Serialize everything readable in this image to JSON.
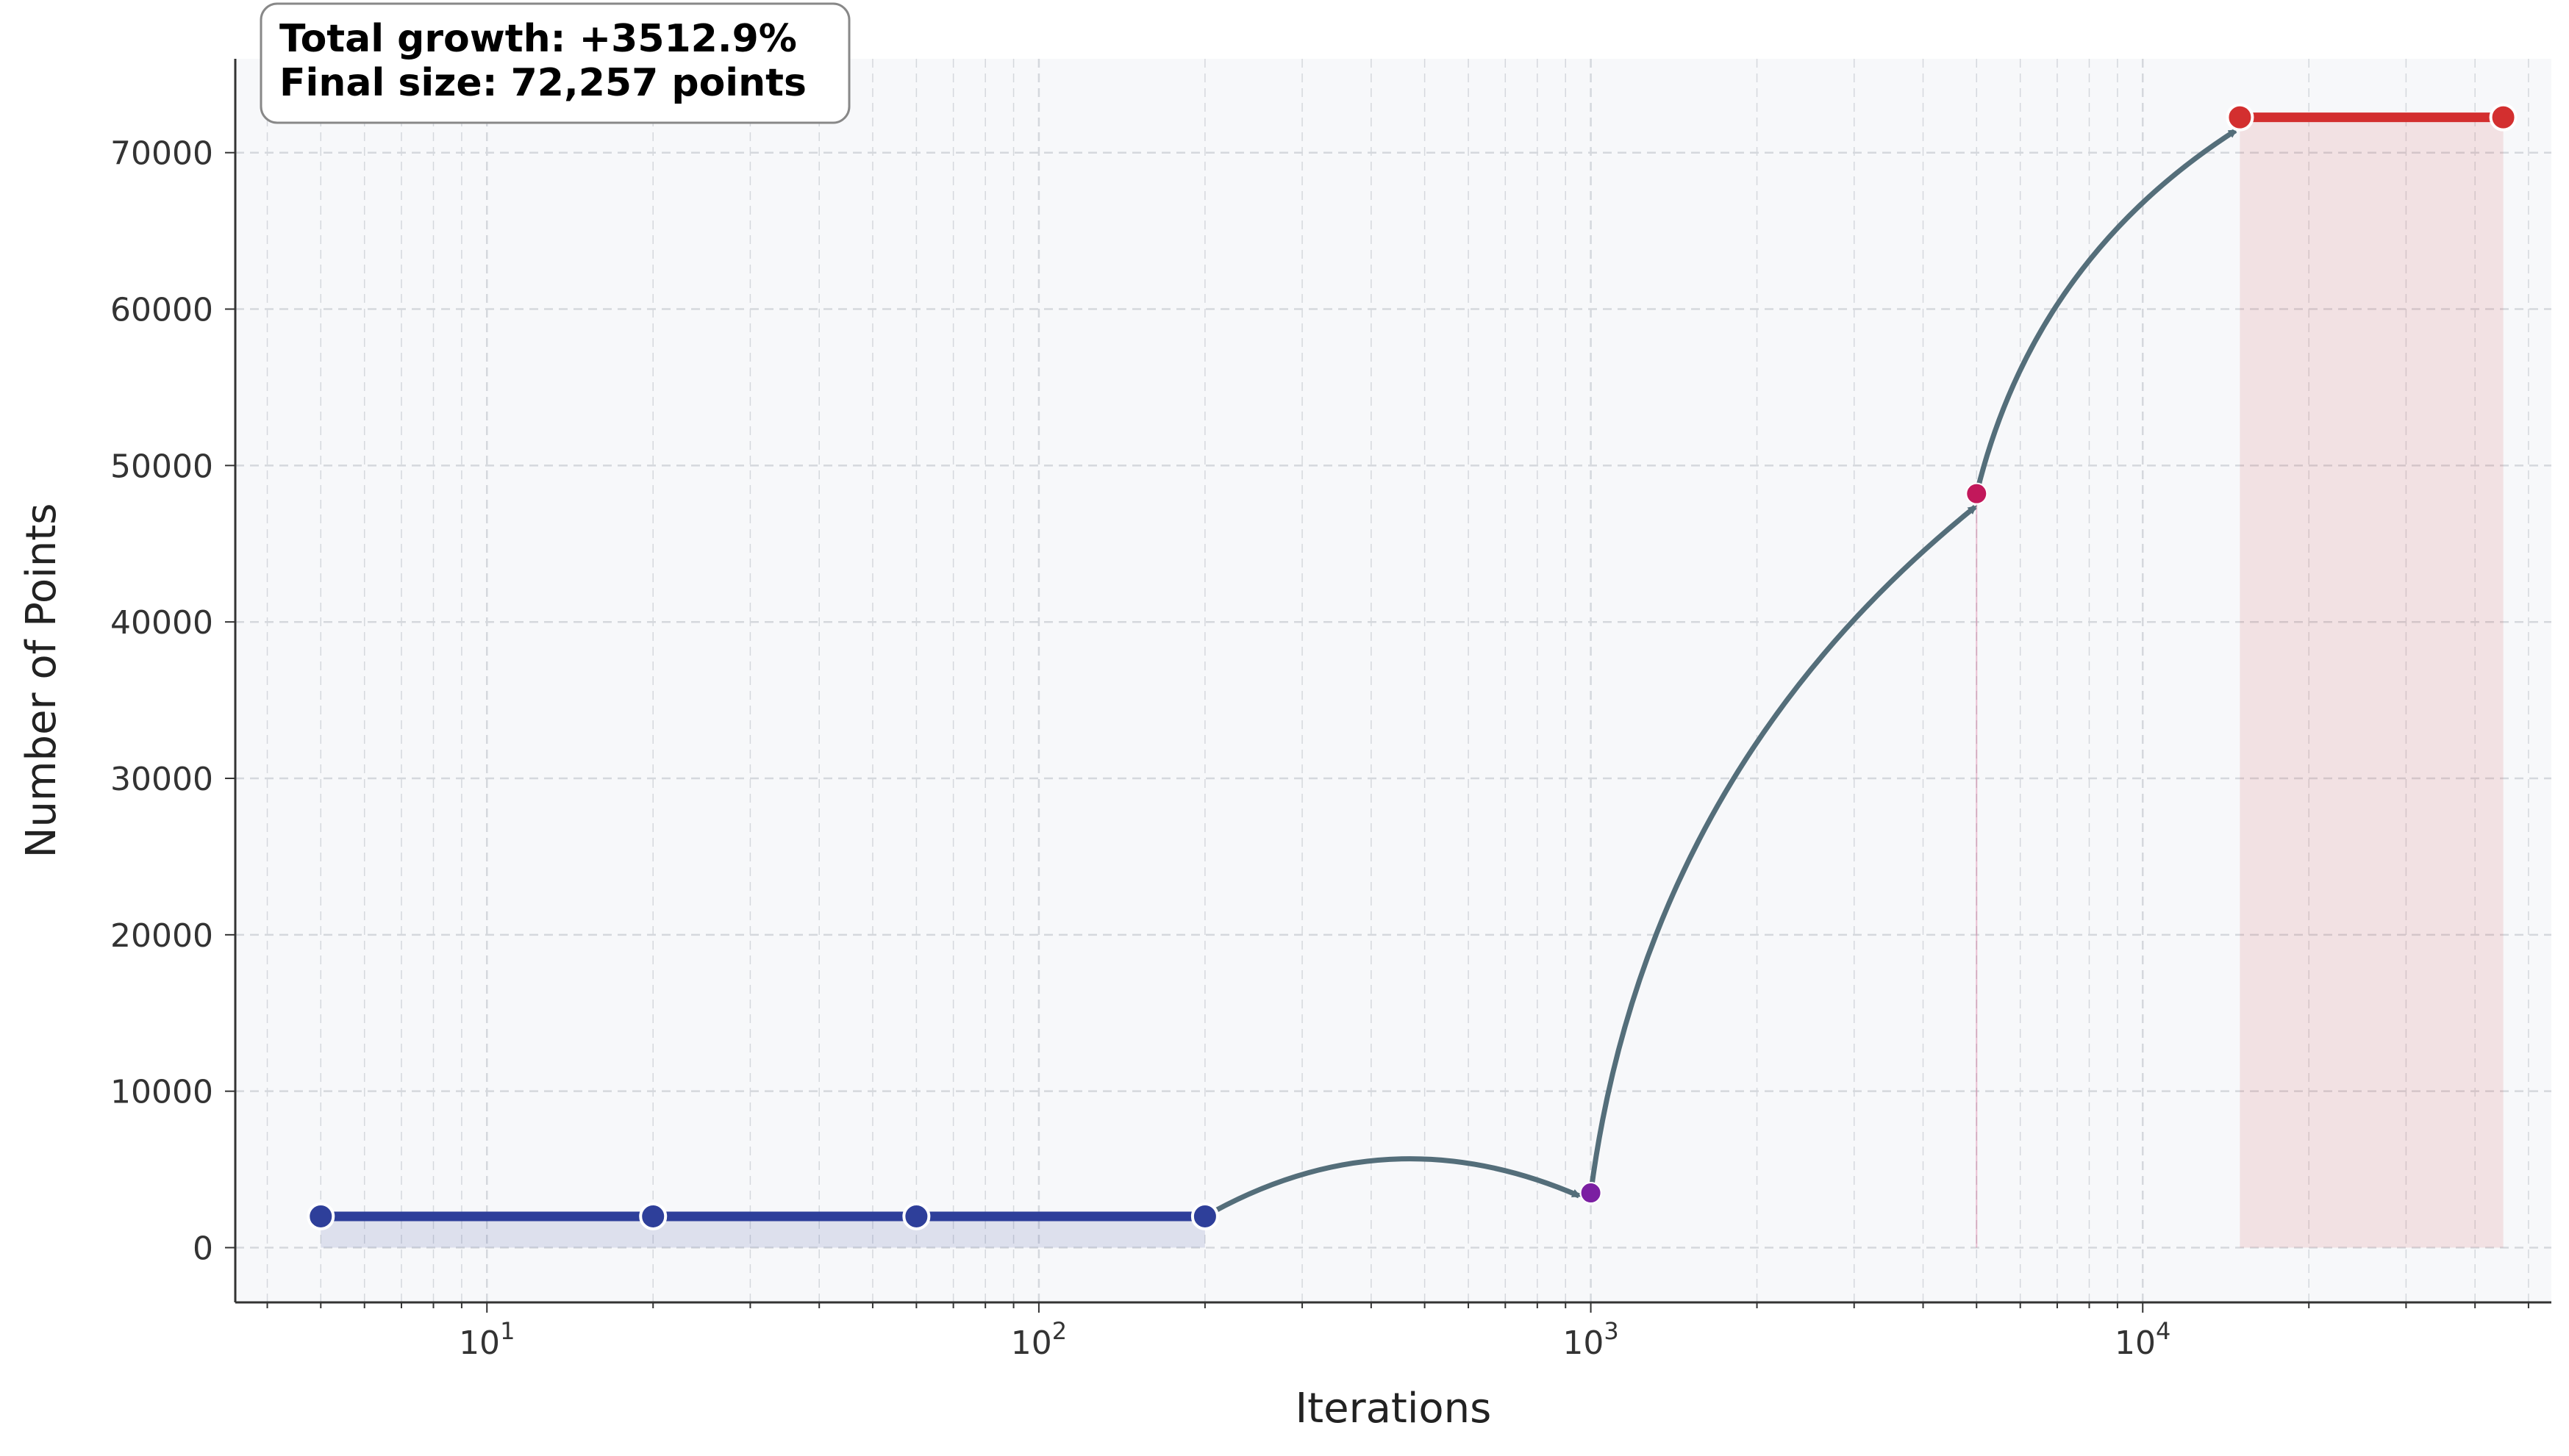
{
  "chart_data": {
    "type": "line",
    "title": "",
    "xlabel": "Iterations",
    "ylabel": "Number of Points",
    "xscale": "log",
    "xlim": [
      3.5,
      55000
    ],
    "ylim": [
      -3500,
      76000
    ],
    "grid": true,
    "x_tick_labels": [
      {
        "base": "10",
        "exp": "1",
        "value": 10
      },
      {
        "base": "10",
        "exp": "2",
        "value": 100
      },
      {
        "base": "10",
        "exp": "3",
        "value": 1000
      },
      {
        "base": "10",
        "exp": "4",
        "value": 10000
      }
    ],
    "y_ticks": [
      0,
      10000,
      20000,
      30000,
      40000,
      50000,
      60000,
      70000
    ],
    "y_tick_labels": [
      "0",
      "10000",
      "20000",
      "30000",
      "40000",
      "50000",
      "60000",
      "70000"
    ],
    "series": [
      {
        "x": [
          5,
          20,
          60,
          200
        ],
        "values": [
          2000,
          2000,
          2000,
          2000
        ],
        "color": "#2E3F9A",
        "fill": true
      },
      {
        "x": [
          1000
        ],
        "values": [
          3500
        ],
        "color": "#7B1FA2"
      },
      {
        "x": [
          5000
        ],
        "values": [
          48200
        ],
        "color": "#C2185B"
      },
      {
        "x": [
          15000,
          45000
        ],
        "values": [
          72257,
          72257
        ],
        "color": "#D32F2F",
        "fill": true
      }
    ],
    "transitions": [
      {
        "from": [
          200,
          2000
        ],
        "to": [
          1000,
          3500
        ]
      },
      {
        "from": [
          1000,
          3500
        ],
        "to": [
          5000,
          48200
        ]
      },
      {
        "from": [
          5000,
          48200
        ],
        "to": [
          15000,
          72257
        ]
      }
    ],
    "annotation": {
      "line1": "Total growth: +3512.9%",
      "line2": "Final size: 72,257 points"
    },
    "colors": {
      "plot_background": "#F7F8FA",
      "arrow": "#546E7A",
      "grid": "#D5D8DD",
      "axis": "#333333"
    }
  }
}
